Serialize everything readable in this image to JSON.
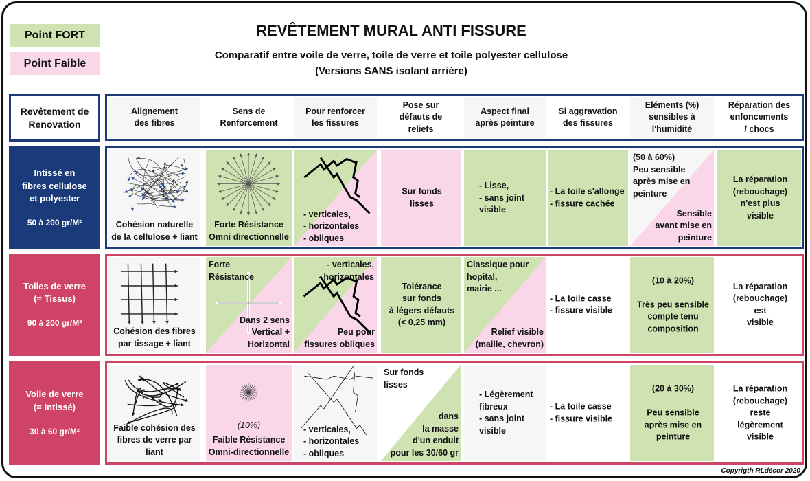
{
  "legend": {
    "strong": "Point FORT",
    "weak": "Point Faible",
    "strong_color": "#cfe2b1",
    "weak_color": "#f9d7e8"
  },
  "title": "REVÊTEMENT MURAL ANTI FISSURE",
  "subtitle": "Comparatif entre voile de verre, toile de verre et toile polyester cellulose",
  "subtitle2": "(Versions SANS isolant arrière)",
  "header": {
    "corner": "Revêtement de\nRenovation",
    "columns": [
      "Alignement\ndes fibres",
      "Sens de\nRenforcement",
      "Pour renforcer\nles fissures",
      "Pose sur\ndéfauts de\nreliefs",
      "Aspect final\naprès peinture",
      "Si aggravation\ndes fissures",
      "Eléments (%)\nsensibles à\nl'humidité",
      "Réparation des\nenfoncements\n/ chocs"
    ]
  },
  "rows": [
    {
      "name": "Intissé en\nfibres cellulose\net polyester",
      "weight": "50 à 200 gr/M²",
      "color": "#1b3a7a",
      "cells": [
        {
          "fill": "grey",
          "icon": "random-fibers-icon",
          "text": "Cohésion naturelle\nde la cellulose + liant"
        },
        {
          "fill": "green",
          "icon": "omni-arrows-icon",
          "text": "Forte Résistance\nOmni directionnelle"
        },
        {
          "fill": "split-green-pink",
          "icon": "cracks-icon",
          "text": "- verticales,\n- horizontales\n- obliques"
        },
        {
          "fill": "pink",
          "text": "Sur fonds\nlisses"
        },
        {
          "fill": "green",
          "text": "- Lisse,\n- sans  joint\n   visible"
        },
        {
          "fill": "green",
          "text": "- La toile s'allonge\n- fissure cachée"
        },
        {
          "fill": "split-white-pink",
          "top": "(50 à 60%)\nPeu sensible\naprès mise en\npeinture",
          "bottom": "Sensible\navant mise en\npeinture"
        },
        {
          "fill": "green",
          "text": "La réparation\n(rebouchage)\nn'est plus\nvisible"
        }
      ]
    },
    {
      "name": "Toiles de verre\n(= Tissus)",
      "weight": "90 à 200 gr/M²",
      "color": "#cf4466",
      "cells": [
        {
          "fill": "grey",
          "icon": "woven-grid-icon",
          "text": "Cohésion des fibres\npar tissage + liant"
        },
        {
          "fill": "split-green-pink",
          "icon": "cross-arrows-icon",
          "top": "Forte\nRésistance",
          "bottom": "Dans 2 sens\nVertical + Horizontal"
        },
        {
          "fill": "split-green-pink",
          "icon": "cracks-icon",
          "top": "- verticales,\n- horizontales",
          "bottom": "Peu pour\nfissures obliques"
        },
        {
          "fill": "green",
          "text": "Tolérance\nsur fonds\nà légers défauts\n(< 0,25 mm)"
        },
        {
          "fill": "split-green-pink",
          "top": "Classique pour\nhopital,\nmairie ...",
          "bottom": "Relief visible\n(maille, chevron)"
        },
        {
          "fill": "white",
          "text": "- La toile casse\n- fissure visible"
        },
        {
          "fill": "green",
          "text": "(10 à 20%)\n\nTrès peu sensible\ncompte tenu\ncomposition"
        },
        {
          "fill": "white",
          "text": "La réparation\n(rebouchage)\nest\nvisible"
        }
      ]
    },
    {
      "name": "Voile de verre\n(= Intissé)",
      "weight": "30 à 60 gr/M²",
      "color": "#cf4466",
      "cells": [
        {
          "fill": "grey",
          "icon": "loose-fibers-icon",
          "text": "Faible cohésion des\nfibres de verre par liant"
        },
        {
          "fill": "pink",
          "icon": "small-burst-icon",
          "note": "(10%)",
          "text": "Faible Résistance\nOmni-directionnelle"
        },
        {
          "fill": "grey",
          "icon": "thin-cracks-icon",
          "text": "- verticales,\n- horizontales\n- obliques"
        },
        {
          "fill": "split-white-green",
          "top": "Sur fonds\nlisses",
          "bottom": "dans\nla masse\nd'un enduit\npour les 30/60 gr"
        },
        {
          "fill": "grey",
          "text": "- Légèrement\n   fibreux\n- sans joint\n   visible"
        },
        {
          "fill": "white",
          "text": "- La toile casse\n- fissure visible"
        },
        {
          "fill": "green",
          "text": "(20 à 30%)\n\nPeu sensible\naprès mise en\npeinture"
        },
        {
          "fill": "white",
          "text": "La réparation\n(rebouchage)\nreste\nlégèrement\nvisible"
        }
      ]
    }
  ],
  "copyright": "Copyrigth RLdécor 2020"
}
